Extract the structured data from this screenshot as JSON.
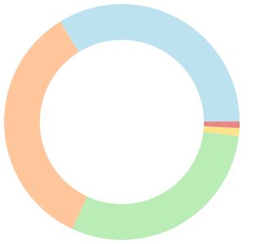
{
  "chart_data": {
    "type": "donut",
    "values": [
      33.7,
      0.9,
      1.1,
      30,
      34.3
    ],
    "colors": [
      "#bde2ef",
      "#e98585",
      "#fde38c",
      "#b9edb5",
      "#ffc59b"
    ]
  }
}
